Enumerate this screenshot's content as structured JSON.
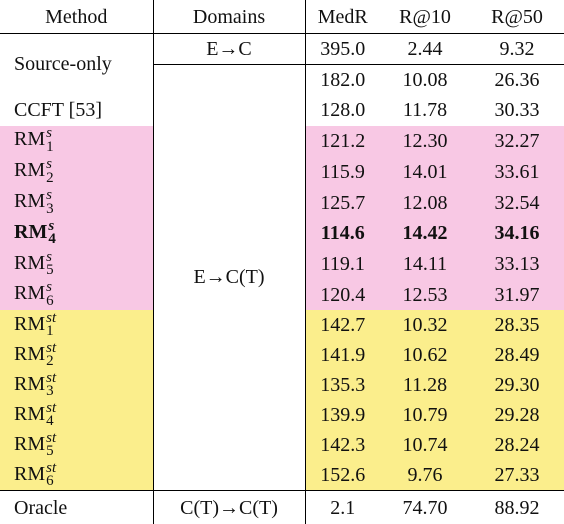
{
  "header": [
    "Method",
    "Domains",
    "MedR",
    "R@10",
    "R@50"
  ],
  "rows": [
    {
      "method": {
        "text": "Source-only"
      },
      "domain": "E→C",
      "values": [
        "395.0",
        "2.44",
        "9.32"
      ],
      "shade": "none"
    },
    {
      "domain": "E→C(T)",
      "values": [
        "182.0",
        "10.08",
        "26.36"
      ],
      "shade": "none"
    },
    {
      "method": {
        "text": "CCFT [53]"
      },
      "values": [
        "128.0",
        "11.78",
        "30.33"
      ],
      "shade": "none"
    },
    {
      "method": {
        "base": "RM",
        "sub": "1",
        "sup": "s"
      },
      "values": [
        "121.2",
        "12.30",
        "32.27"
      ],
      "shade": "pink"
    },
    {
      "method": {
        "base": "RM",
        "sub": "2",
        "sup": "s"
      },
      "values": [
        "115.9",
        "14.01",
        "33.61"
      ],
      "shade": "pink"
    },
    {
      "method": {
        "base": "RM",
        "sub": "3",
        "sup": "s"
      },
      "values": [
        "125.7",
        "12.08",
        "32.54"
      ],
      "shade": "pink"
    },
    {
      "method": {
        "base": "RM",
        "sub": "4",
        "sup": "s"
      },
      "values": [
        "114.6",
        "14.42",
        "34.16"
      ],
      "shade": "pink",
      "bold": true
    },
    {
      "method": {
        "base": "RM",
        "sub": "5",
        "sup": "s"
      },
      "values": [
        "119.1",
        "14.11",
        "33.13"
      ],
      "shade": "pink"
    },
    {
      "method": {
        "base": "RM",
        "sub": "6",
        "sup": "s"
      },
      "values": [
        "120.4",
        "12.53",
        "31.97"
      ],
      "shade": "pink"
    },
    {
      "method": {
        "base": "RM",
        "sub": "1",
        "sup": "st"
      },
      "values": [
        "142.7",
        "10.32",
        "28.35"
      ],
      "shade": "yellow"
    },
    {
      "method": {
        "base": "RM",
        "sub": "2",
        "sup": "st"
      },
      "values": [
        "141.9",
        "10.62",
        "28.49"
      ],
      "shade": "yellow"
    },
    {
      "method": {
        "base": "RM",
        "sub": "3",
        "sup": "st"
      },
      "values": [
        "135.3",
        "11.28",
        "29.30"
      ],
      "shade": "yellow"
    },
    {
      "method": {
        "base": "RM",
        "sub": "4",
        "sup": "st"
      },
      "values": [
        "139.9",
        "10.79",
        "29.28"
      ],
      "shade": "yellow"
    },
    {
      "method": {
        "base": "RM",
        "sub": "5",
        "sup": "st"
      },
      "values": [
        "142.3",
        "10.74",
        "28.24"
      ],
      "shade": "yellow"
    },
    {
      "method": {
        "base": "RM",
        "sub": "6",
        "sup": "st"
      },
      "values": [
        "152.6",
        "9.76",
        "27.33"
      ],
      "shade": "yellow"
    },
    {
      "method": {
        "text": "Oracle"
      },
      "domain": "C(T)→C(T)",
      "values": [
        "2.1",
        "74.70",
        "88.92"
      ],
      "shade": "none"
    }
  ]
}
